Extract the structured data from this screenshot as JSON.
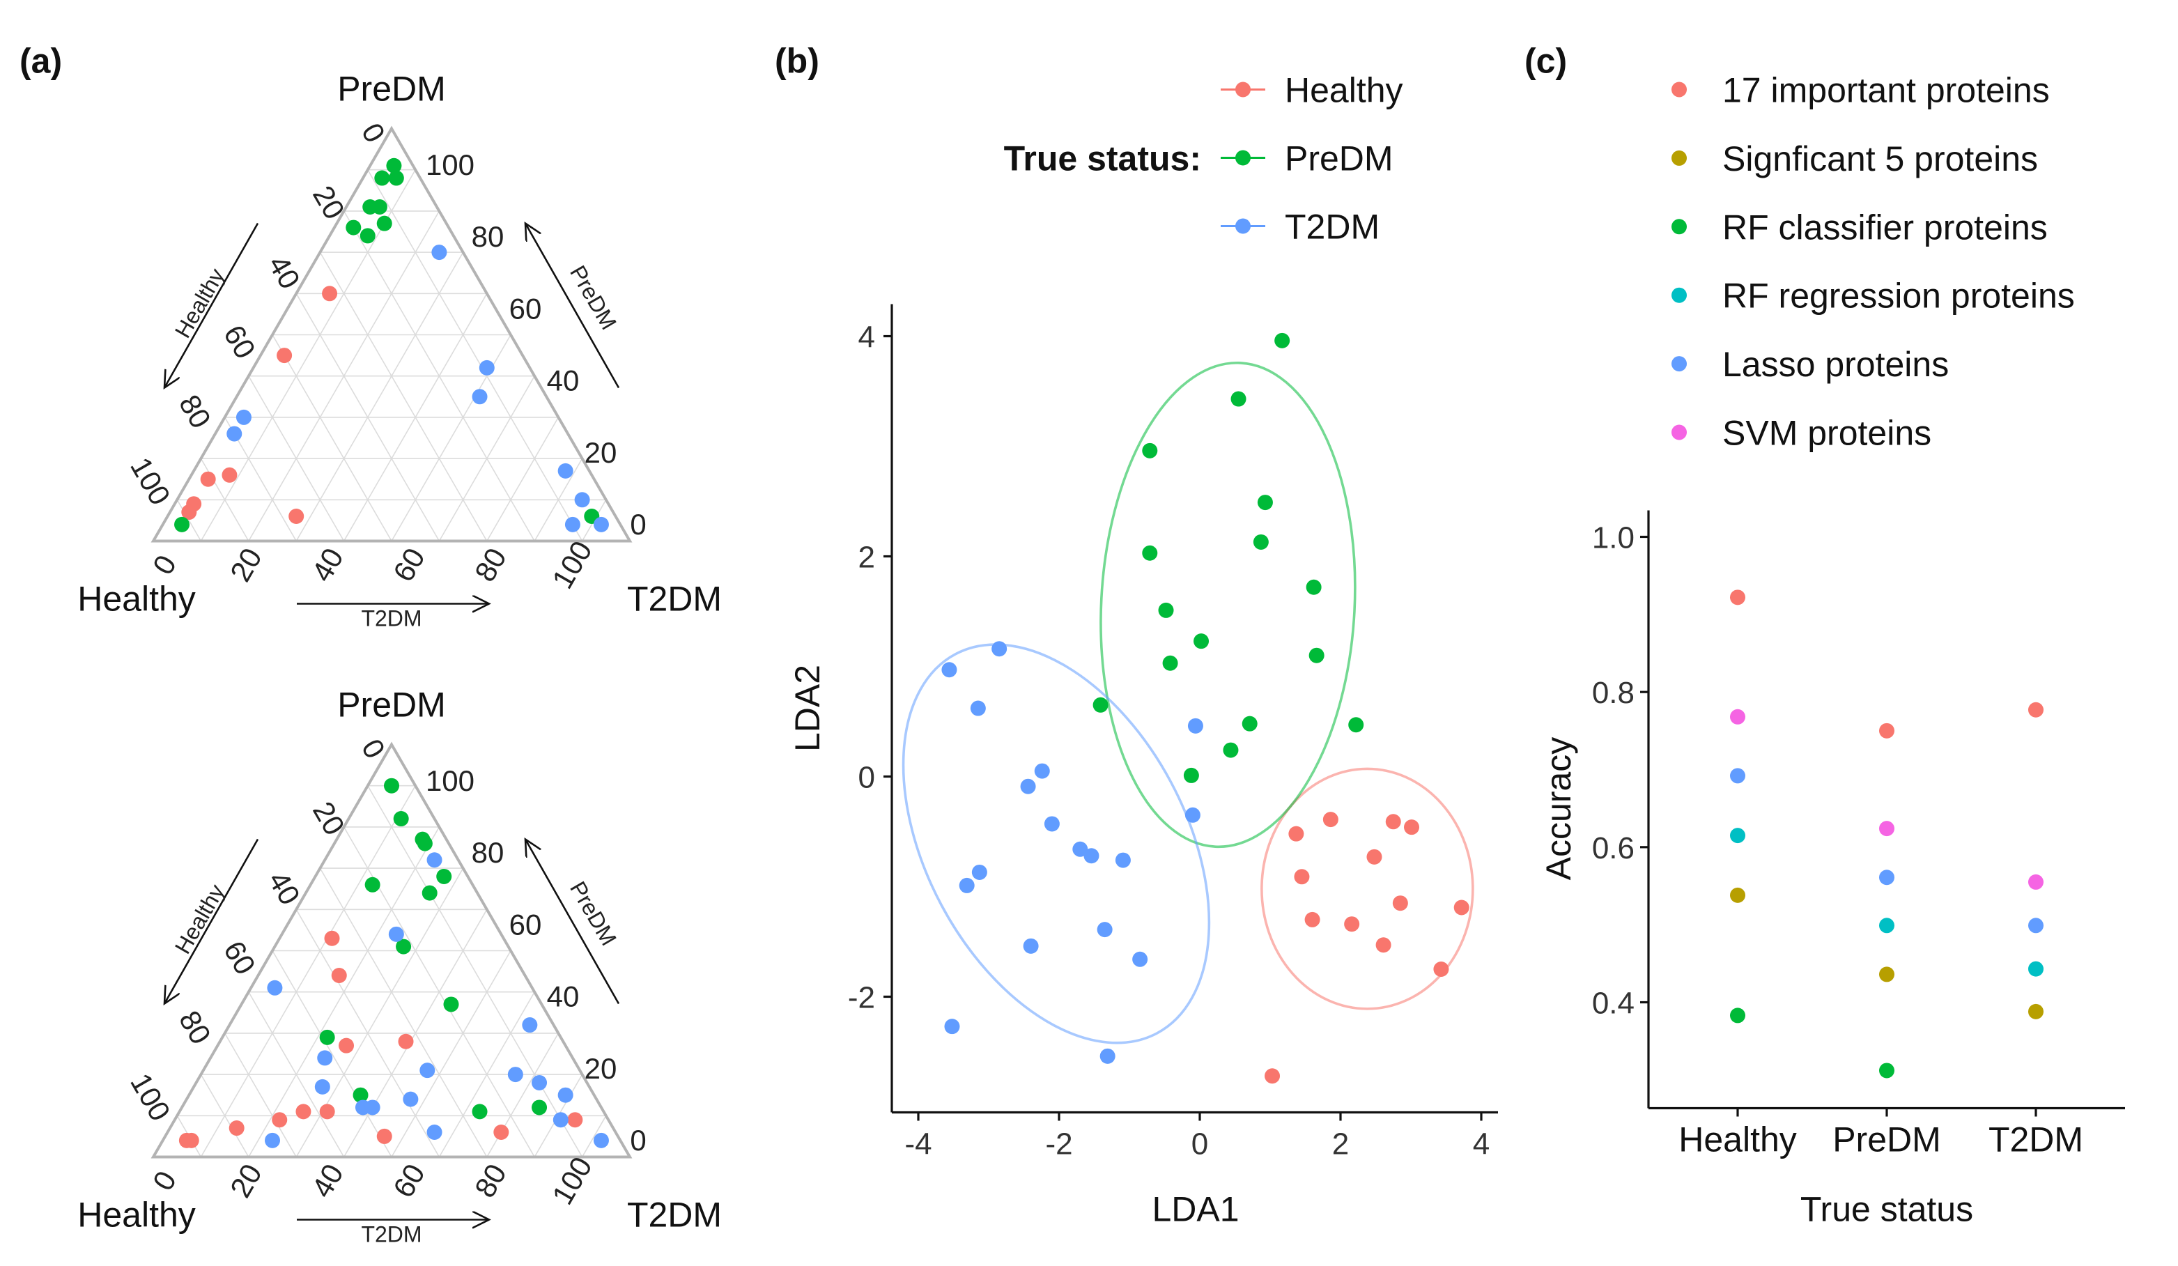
{
  "panel_labels": {
    "a": "(a)",
    "b": "(b)",
    "c": "(c)"
  },
  "colors": {
    "Healthy": "#F8766D",
    "PreDM": "#00BA38",
    "T2DM": "#619CFF"
  },
  "chart_data": [
    {
      "type": "scatter",
      "subtype": "ternary",
      "id": "ternary-top",
      "vertex_labels": {
        "top": "PreDM",
        "left": "Healthy",
        "right": "T2DM"
      },
      "axis_titles": {
        "left": "Healthy",
        "right": "PreDM",
        "bottom": "T2DM"
      },
      "ticks": [
        "0",
        "20",
        "40",
        "60",
        "80",
        "100"
      ],
      "series": [
        {
          "name": "Healthy",
          "points": [
            [
              33,
              60,
              7
            ],
            [
              50,
              45,
              5
            ],
            [
              76,
              16,
              8
            ],
            [
              81,
              15,
              4
            ],
            [
              87,
              9,
              4
            ],
            [
              89,
              7,
              4
            ],
            [
              67,
              6,
              27
            ]
          ]
        },
        {
          "name": "PreDM",
          "points": [
            [
              4,
              91,
              5
            ],
            [
              5,
              88,
              7
            ],
            [
              8,
              88,
              4
            ],
            [
              14,
              81,
              5
            ],
            [
              12,
              81,
              7
            ],
            [
              13,
              77,
              10
            ],
            [
              20,
              76,
              4
            ],
            [
              18,
              74,
              8
            ],
            [
              92,
              4,
              4
            ],
            [
              5,
              6,
              89
            ]
          ]
        },
        {
          "name": "T2DM",
          "points": [
            [
              5,
              70,
              25
            ],
            [
              9,
              42,
              49
            ],
            [
              14,
              35,
              51
            ],
            [
              66,
              30,
              4
            ],
            [
              70,
              26,
              4
            ],
            [
              5,
              17,
              78
            ],
            [
              5,
              10,
              85
            ],
            [
              10,
              4,
              86
            ],
            [
              4,
              4,
              92
            ]
          ]
        }
      ]
    },
    {
      "type": "scatter",
      "subtype": "ternary",
      "id": "ternary-bottom",
      "vertex_labels": {
        "top": "PreDM",
        "left": "Healthy",
        "right": "T2DM"
      },
      "axis_titles": {
        "left": "Healthy",
        "right": "PreDM",
        "bottom": "T2DM"
      },
      "ticks": [
        "0",
        "20",
        "40",
        "60",
        "80",
        "100"
      ],
      "series": [
        {
          "name": "Healthy",
          "points": [
            [
              36,
              53,
              11
            ],
            [
              39,
              44,
              17
            ],
            [
              46,
              27,
              27
            ],
            [
              33,
              28,
              39
            ],
            [
              63,
              11,
              26
            ],
            [
              58,
              11,
              31
            ],
            [
              69,
              9,
              22
            ],
            [
              79,
              7,
              14
            ],
            [
              91,
              4,
              5
            ],
            [
              90,
              4,
              6
            ],
            [
              49,
              5,
              46
            ],
            [
              24,
              6,
              70
            ],
            [
              7,
              9,
              84
            ]
          ]
        },
        {
          "name": "PreDM",
          "points": [
            [
              5,
              90,
              5
            ],
            [
              7,
              82,
              11
            ],
            [
              5,
              77,
              18
            ],
            [
              5,
              76,
              19
            ],
            [
              5,
              68,
              27
            ],
            [
              10,
              64,
              26
            ],
            [
              21,
              66,
              13
            ],
            [
              22,
              51,
              27
            ],
            [
              19,
              37,
              44
            ],
            [
              49,
              29,
              22
            ],
            [
              49,
              15,
              36
            ],
            [
              26,
              11,
              63
            ],
            [
              13,
              12,
              75
            ]
          ]
        },
        {
          "name": "T2DM",
          "points": [
            [
              5,
              72,
              23
            ],
            [
              22,
              54,
              24
            ],
            [
              54,
              41,
              5
            ],
            [
              5,
              32,
              63
            ],
            [
              52,
              24,
              24
            ],
            [
              32,
              21,
              47
            ],
            [
              14,
              20,
              66
            ],
            [
              10,
              18,
              72
            ],
            [
              56,
              17,
              27
            ],
            [
              39,
              14,
              47
            ],
            [
              50,
              12,
              38
            ],
            [
              48,
              12,
              40
            ],
            [
              6,
              15,
              79
            ],
            [
              10,
              9,
              81
            ],
            [
              38,
              6,
              56
            ],
            [
              73,
              4,
              23
            ],
            [
              4,
              4,
              92
            ]
          ]
        }
      ]
    },
    {
      "type": "scatter",
      "id": "lda",
      "xlabel": "LDA1",
      "ylabel": "LDA2",
      "xlim": [
        -4.4,
        4.3
      ],
      "ylim": [
        -3.05,
        4.3
      ],
      "xticks": [
        -4,
        -2,
        0,
        2,
        4
      ],
      "yticks": [
        -2,
        0,
        2,
        4
      ],
      "legend": {
        "title": "True status:",
        "placement": "top",
        "entries": [
          "Healthy",
          "PreDM",
          "T2DM"
        ]
      },
      "series": [
        {
          "name": "Healthy",
          "points": [
            [
              1.86,
              -0.39
            ],
            [
              1.37,
              -0.52
            ],
            [
              2.75,
              -0.41
            ],
            [
              3.01,
              -0.46
            ],
            [
              2.48,
              -0.73
            ],
            [
              1.45,
              -0.91
            ],
            [
              2.85,
              -1.15
            ],
            [
              3.72,
              -1.19
            ],
            [
              1.6,
              -1.3
            ],
            [
              2.16,
              -1.34
            ],
            [
              2.61,
              -1.53
            ],
            [
              3.43,
              -1.75
            ],
            [
              1.03,
              -2.72
            ]
          ],
          "ellipse": {
            "cx": 2.38,
            "cy": -1.02,
            "rx": 1.5,
            "ry": 1.09,
            "angle": 0
          }
        },
        {
          "name": "PreDM",
          "points": [
            [
              1.17,
              3.96
            ],
            [
              0.55,
              3.43
            ],
            [
              -0.71,
              2.96
            ],
            [
              0.93,
              2.49
            ],
            [
              0.87,
              2.13
            ],
            [
              -0.71,
              2.03
            ],
            [
              1.62,
              1.72
            ],
            [
              -0.48,
              1.51
            ],
            [
              0.02,
              1.23
            ],
            [
              1.66,
              1.1
            ],
            [
              -0.42,
              1.03
            ],
            [
              -1.41,
              0.65
            ],
            [
              0.71,
              0.48
            ],
            [
              2.22,
              0.47
            ],
            [
              0.44,
              0.24
            ],
            [
              -0.12,
              0.01
            ]
          ],
          "ellipse": {
            "cx": 0.4,
            "cy": 1.56,
            "rx": 1.8,
            "ry": 2.2,
            "angle": 3
          }
        },
        {
          "name": "T2DM",
          "points": [
            [
              -2.85,
              1.16
            ],
            [
              -3.56,
              0.97
            ],
            [
              -3.15,
              0.62
            ],
            [
              -2.24,
              0.05
            ],
            [
              -2.44,
              -0.09
            ],
            [
              -2.1,
              -0.43
            ],
            [
              -1.7,
              -0.66
            ],
            [
              -1.54,
              -0.72
            ],
            [
              -1.09,
              -0.76
            ],
            [
              -3.13,
              -0.87
            ],
            [
              -3.31,
              -0.99
            ],
            [
              -0.06,
              0.46
            ],
            [
              -0.1,
              -0.35
            ],
            [
              -1.35,
              -1.39
            ],
            [
              -2.4,
              -1.54
            ],
            [
              -0.85,
              -1.66
            ],
            [
              -3.52,
              -2.27
            ],
            [
              -1.31,
              -2.54
            ]
          ],
          "ellipse": {
            "cx": -2.04,
            "cy": -0.61,
            "rx": 1.85,
            "ry": 1.95,
            "angle": -28
          }
        }
      ]
    },
    {
      "type": "scatter",
      "id": "accuracy",
      "xlabel": "True status",
      "ylabel": "Accuracy",
      "categories": [
        "Healthy",
        "PreDM",
        "T2DM"
      ],
      "ylim": [
        0.265,
        1.03
      ],
      "yticks": [
        "0.4",
        "0.6",
        "0.8",
        "1.0"
      ],
      "legend": {
        "placement": "top"
      },
      "series": [
        {
          "name": "17 important proteins",
          "color": "#F8766D",
          "values": [
            0.922,
            0.75,
            0.777
          ]
        },
        {
          "name": "Signficant 5 proteins",
          "color": "#B79F00",
          "values": [
            0.538,
            0.436,
            0.388
          ]
        },
        {
          "name": "RF classifier proteins",
          "color": "#00BA38",
          "values": [
            0.383,
            0.312,
            null
          ]
        },
        {
          "name": "RF regression proteins",
          "color": "#00BFC4",
          "values": [
            0.615,
            0.499,
            0.443
          ]
        },
        {
          "name": "Lasso proteins",
          "color": "#619CFF",
          "values": [
            0.692,
            0.561,
            0.499
          ]
        },
        {
          "name": "SVM proteins",
          "color": "#F564E3",
          "values": [
            0.768,
            0.624,
            0.555
          ]
        }
      ]
    }
  ]
}
